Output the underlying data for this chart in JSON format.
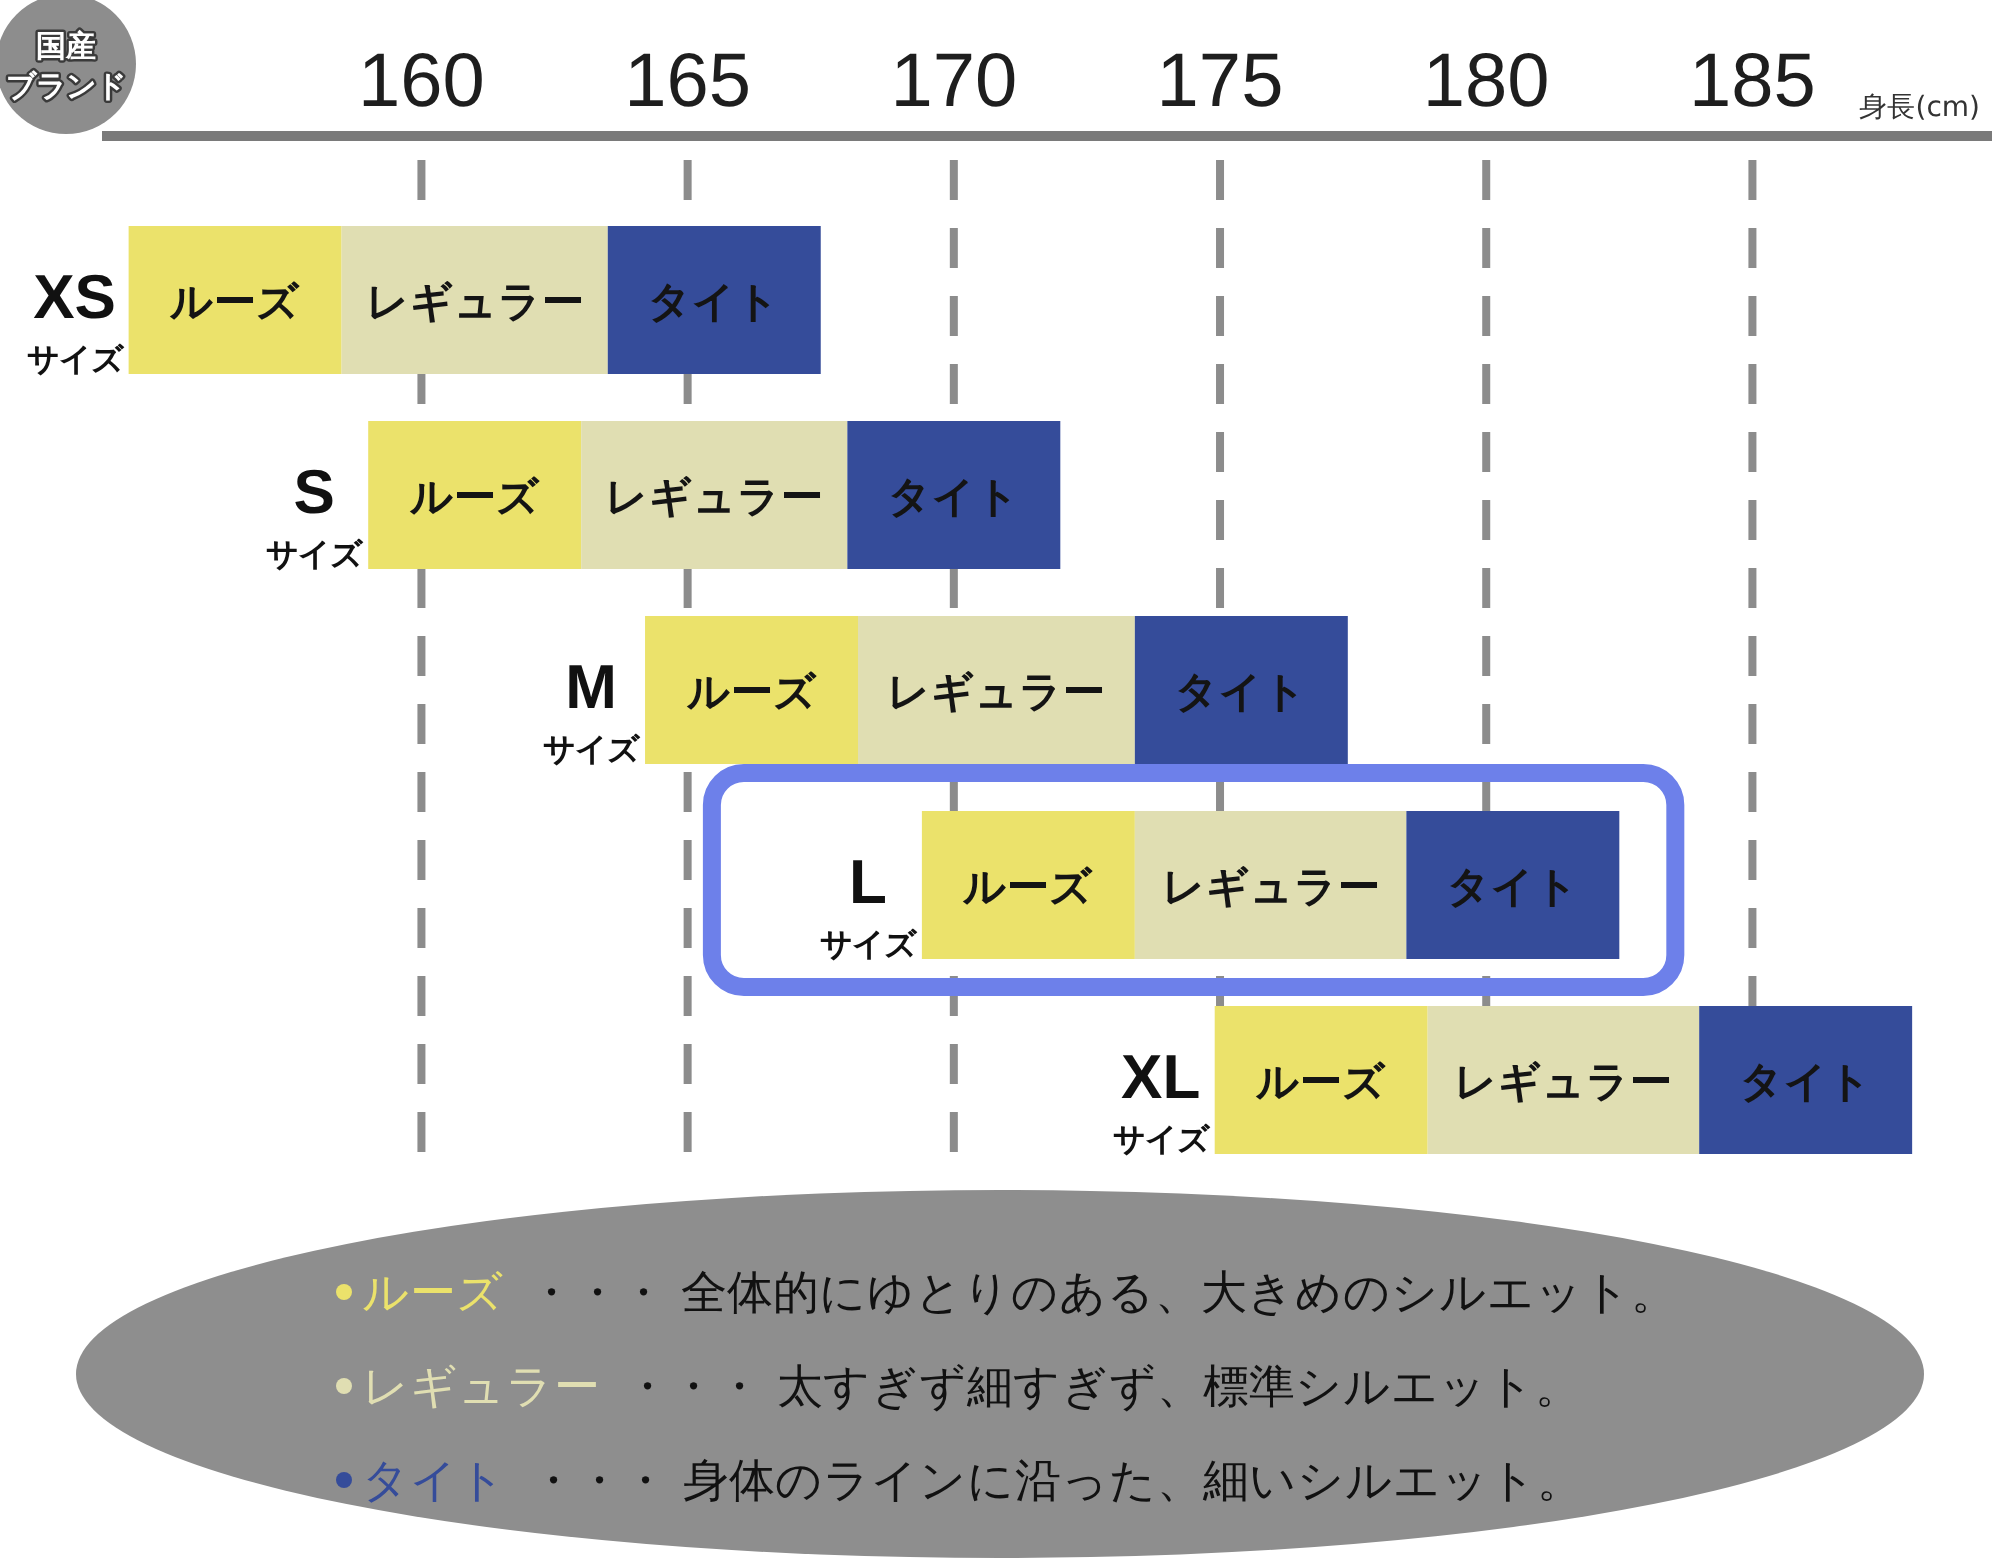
{
  "chart_data": {
    "type": "bar",
    "orientation": "horizontal",
    "title": "国産ブランド",
    "xlabel": "身長(cm)",
    "categories": [
      "**XS**サイズ",
      "**S**サイズ",
      "**M**サイズ",
      "**L**サイズ",
      "**XL**サイズ"
    ],
    "series": [
      {
        "name": "ルーズ",
        "color": "#ebe26b",
        "base": [
          154.5,
          159,
          164.2,
          169.4,
          174.9
        ],
        "values": [
          4,
          4,
          4,
          4,
          4
        ]
      },
      {
        "name": "レギュラー",
        "color": "#e0deb2",
        "base": [
          158.5,
          163,
          168.2,
          173.4,
          178.9
        ],
        "values": [
          5,
          5,
          5.2,
          5.1,
          5.1
        ]
      },
      {
        "name": "タイト",
        "color": "#354c9a",
        "base": [
          163.5,
          168,
          173.4,
          178.5,
          184
        ],
        "values": [
          4,
          4,
          4,
          4,
          4
        ]
      }
    ],
    "xlim": [
      154,
      189.5
    ],
    "xticks": [
      160,
      165,
      170,
      175,
      180,
      185
    ],
    "grid": "x",
    "legend": "bottom",
    "annotations": [
      "・・・ 全体的にゆとりのある、大きめのシルエット。",
      "・・・ 太すぎず細すぎず、標準シルエット。",
      "・・・ 身体のラインに沿った、細いシルエット。"
    ]
  }
}
